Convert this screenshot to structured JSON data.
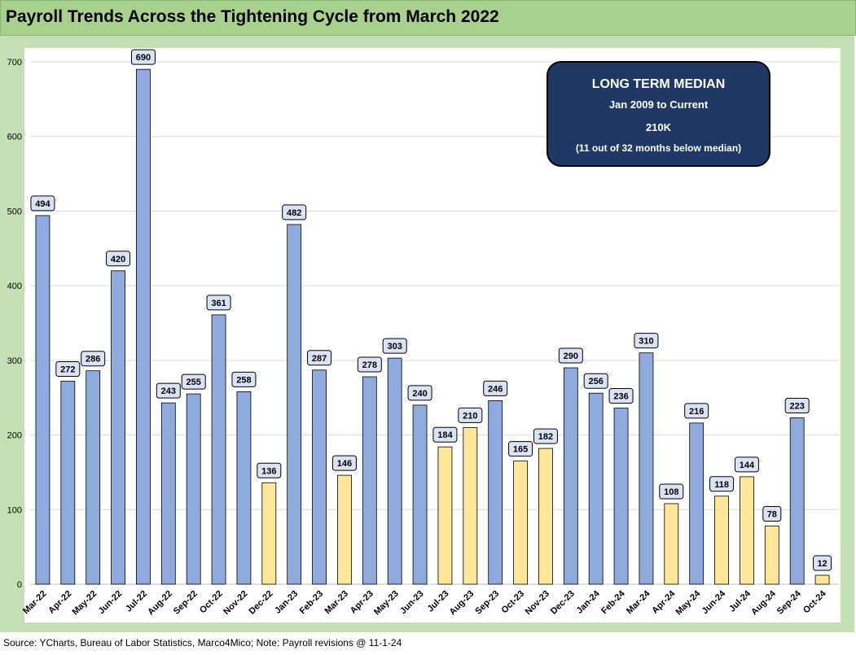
{
  "title": "Payroll Trends Across the Tightening Cycle from March 2022",
  "footer": "Source: YCharts, Bureau of Labor Statistics, Marco4Mico; Note: Payroll revisions @ 11-1-24",
  "median_box": {
    "title": "LONG TERM MEDIAN",
    "subtitle": "Jan 2009 to Current",
    "value": "210K",
    "note": "(11 out of 32 months below median)"
  },
  "colors": {
    "above_median": "#8faadc",
    "below_median": "#ffe699",
    "bar_border": "#000000",
    "label_fill": "#dae3f3",
    "frame": "#c5e0b4",
    "title_bg": "#a9d18e",
    "box_bg": "#1f3864"
  },
  "chart_data": {
    "type": "bar",
    "title": "Payroll Trends Across the Tightening Cycle from March 2022",
    "xlabel": "",
    "ylabel": "",
    "ylim": [
      0,
      700
    ],
    "yticks": [
      0,
      100,
      200,
      300,
      400,
      500,
      600,
      700
    ],
    "grid": true,
    "median": 210,
    "categories": [
      "Mar-22",
      "Apr-22",
      "May-22",
      "Jun-22",
      "Jul-22",
      "Aug-22",
      "Sep-22",
      "Oct-22",
      "Nov-22",
      "Dec-22",
      "Jan-23",
      "Feb-23",
      "Mar-23",
      "Apr-23",
      "May-23",
      "Jun-23",
      "Jul-23",
      "Aug-23",
      "Sep-23",
      "Oct-23",
      "Nov-23",
      "Dec-23",
      "Jan-24",
      "Feb-24",
      "Mar-24",
      "Apr-24",
      "May-24",
      "Jun-24",
      "Jul-24",
      "Aug-24",
      "Sep-24",
      "Oct-24"
    ],
    "values": [
      494,
      272,
      286,
      420,
      690,
      243,
      255,
      361,
      258,
      136,
      482,
      287,
      146,
      278,
      303,
      240,
      184,
      210,
      246,
      165,
      182,
      290,
      256,
      236,
      310,
      108,
      216,
      118,
      144,
      78,
      223,
      12
    ],
    "highlight": [
      false,
      false,
      false,
      false,
      false,
      false,
      false,
      false,
      false,
      true,
      false,
      false,
      true,
      false,
      false,
      false,
      true,
      true,
      false,
      true,
      true,
      false,
      false,
      false,
      false,
      true,
      false,
      true,
      true,
      true,
      false,
      true
    ]
  }
}
